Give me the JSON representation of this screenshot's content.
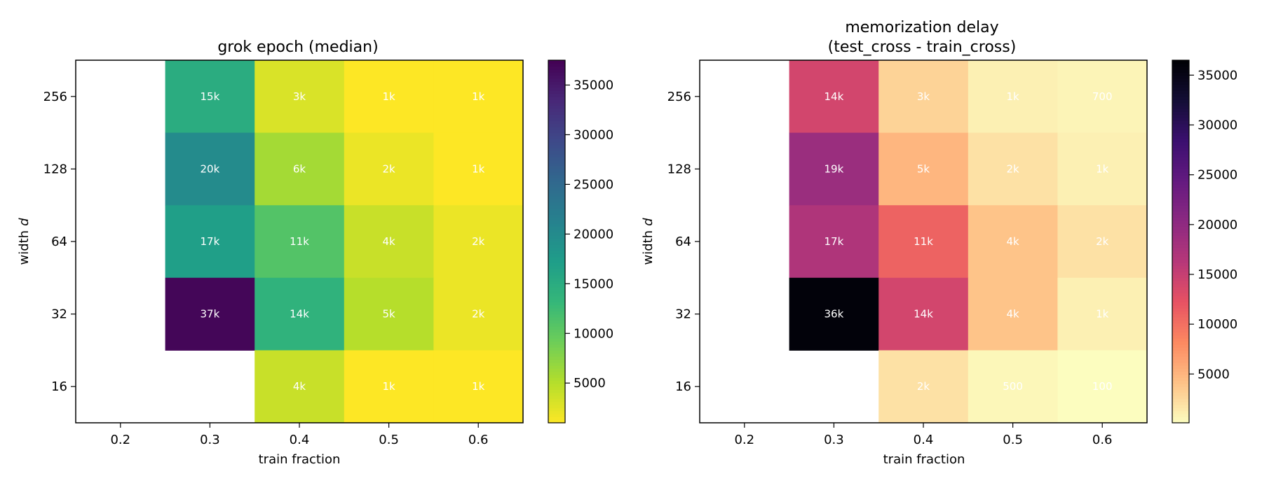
{
  "chart_data": [
    {
      "type": "heatmap",
      "title": "grok epoch (median)",
      "xlabel": "train fraction",
      "ylabel": "width",
      "ylabel_var": "d",
      "x_categories": [
        "0.2",
        "0.3",
        "0.4",
        "0.5",
        "0.6"
      ],
      "y_categories": [
        "256",
        "128",
        "64",
        "32",
        "16"
      ],
      "values": [
        [
          null,
          15000,
          3000,
          1000,
          1000
        ],
        [
          null,
          20000,
          6000,
          2000,
          1000
        ],
        [
          null,
          17000,
          11000,
          4000,
          2000
        ],
        [
          null,
          37000,
          14000,
          5000,
          2000
        ],
        [
          null,
          null,
          4000,
          1000,
          1000
        ]
      ],
      "cell_labels": [
        [
          "",
          "15k",
          "3k",
          "1k",
          "1k"
        ],
        [
          "",
          "20k",
          "6k",
          "2k",
          "1k"
        ],
        [
          "",
          "17k",
          "11k",
          "4k",
          "2k"
        ],
        [
          "",
          "37k",
          "14k",
          "5k",
          "2k"
        ],
        [
          "",
          "",
          "4k",
          "1k",
          "1k"
        ]
      ],
      "colormap": "viridis_r",
      "colorbar_range": [
        1000,
        37500
      ],
      "colorbar_ticks": [
        5000,
        10000,
        15000,
        20000,
        25000,
        30000,
        35000
      ]
    },
    {
      "type": "heatmap",
      "title": "memorization delay",
      "subtitle": "(test_cross - train_cross)",
      "xlabel": "train fraction",
      "ylabel": "width",
      "ylabel_var": "d",
      "x_categories": [
        "0.2",
        "0.3",
        "0.4",
        "0.5",
        "0.6"
      ],
      "y_categories": [
        "256",
        "128",
        "64",
        "32",
        "16"
      ],
      "values": [
        [
          null,
          14000,
          3000,
          1000,
          700
        ],
        [
          null,
          19000,
          5000,
          2000,
          1000
        ],
        [
          null,
          17000,
          11000,
          4000,
          2000
        ],
        [
          null,
          36000,
          14000,
          4000,
          1000
        ],
        [
          null,
          null,
          2000,
          500,
          100
        ]
      ],
      "cell_labels": [
        [
          "",
          "14k",
          "3k",
          "1k",
          "700"
        ],
        [
          "",
          "19k",
          "5k",
          "2k",
          "1k"
        ],
        [
          "",
          "17k",
          "11k",
          "4k",
          "2k"
        ],
        [
          "",
          "36k",
          "14k",
          "4k",
          "1k"
        ],
        [
          "",
          "",
          "2k",
          "500",
          "100"
        ]
      ],
      "colormap": "magma_r",
      "colorbar_range": [
        100,
        36500
      ],
      "colorbar_ticks": [
        5000,
        10000,
        15000,
        20000,
        25000,
        30000,
        35000
      ]
    }
  ]
}
